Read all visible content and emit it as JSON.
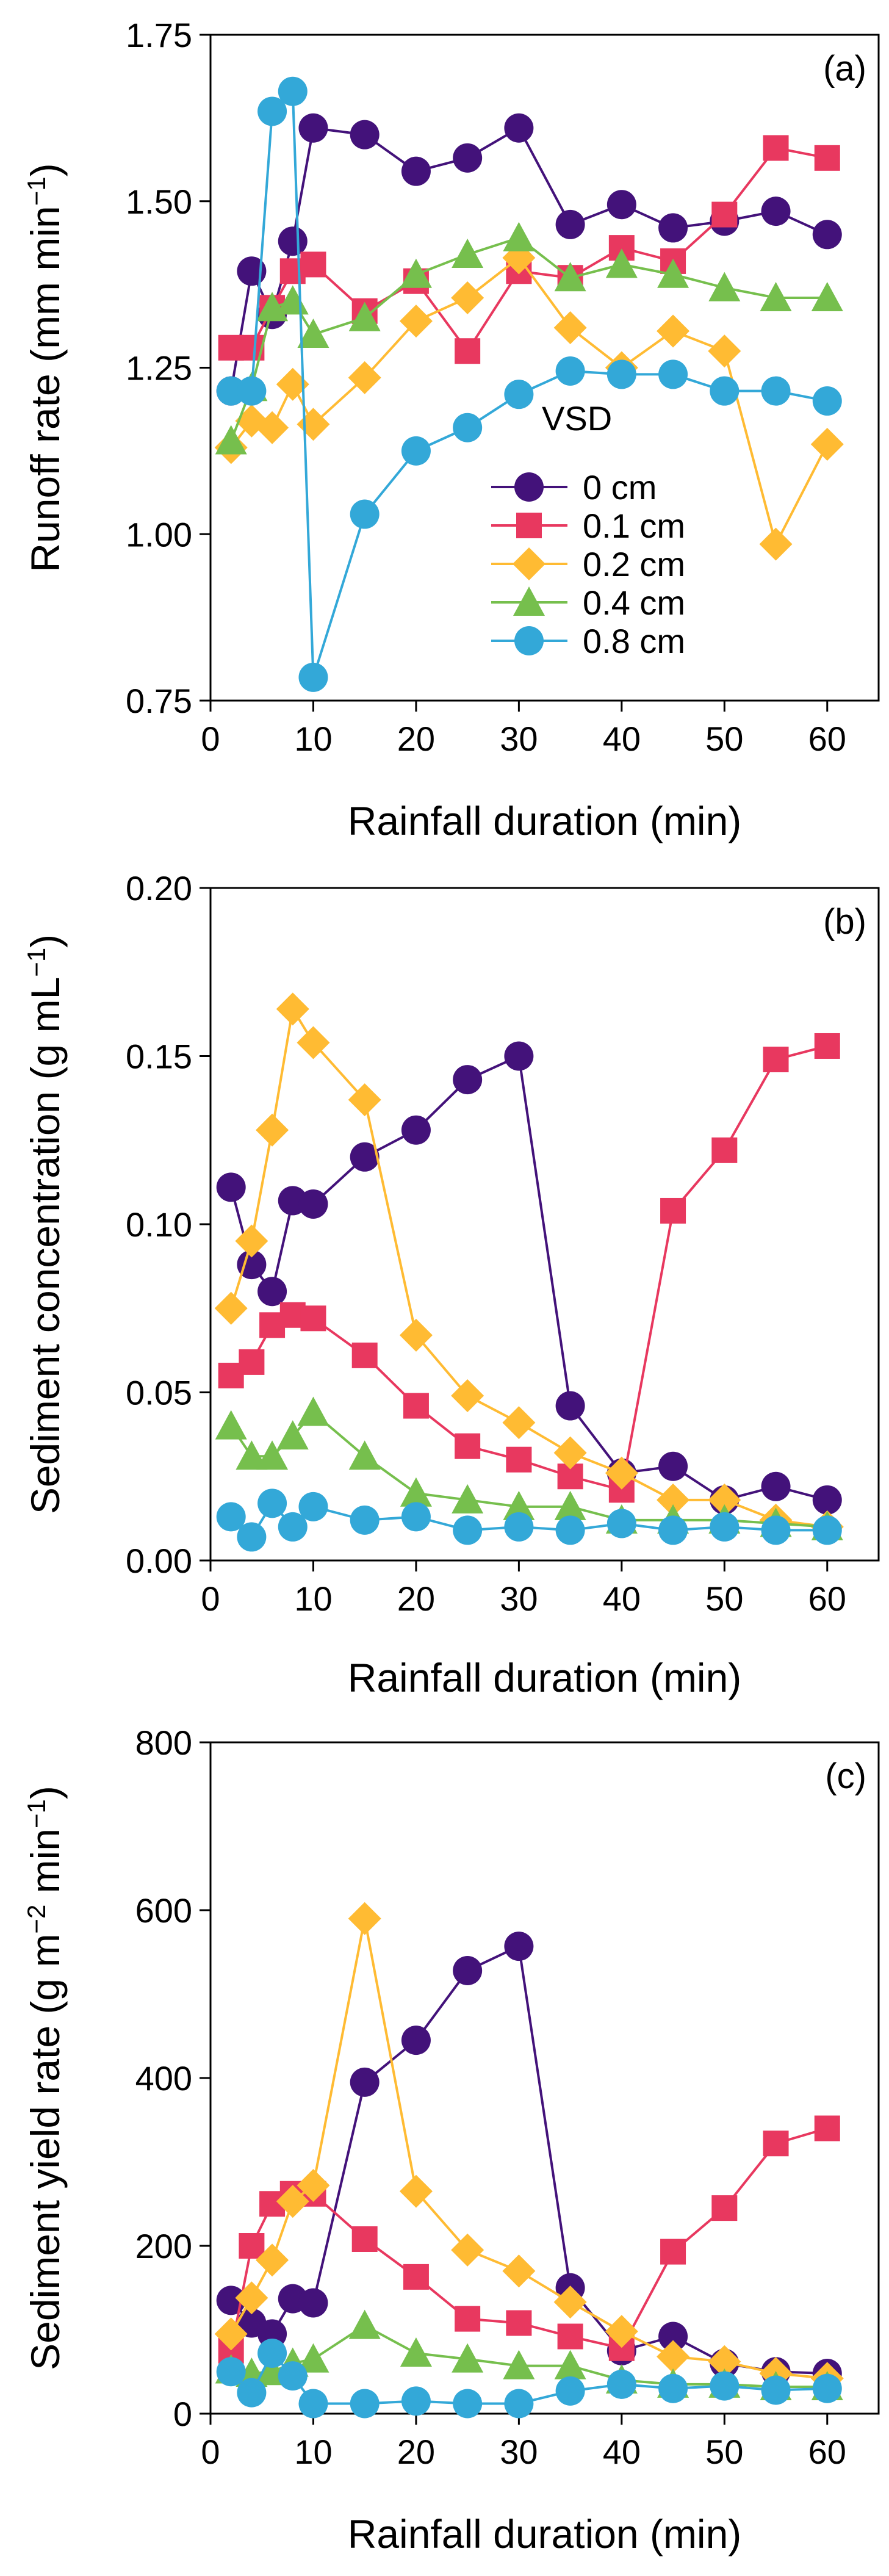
{
  "chart_data": [
    {
      "id": "a",
      "type": "line",
      "panel_label": "(a)",
      "xlabel": "Rainfall duration (min)",
      "ylabel_parts": {
        "main": "Runoff rate (mm min",
        "sup": "−1",
        "tail": ")"
      },
      "xlim": [
        0,
        65
      ],
      "ylim": [
        0.75,
        1.75
      ],
      "x_ticks": [
        0,
        10,
        20,
        30,
        40,
        50,
        60
      ],
      "y_ticks": [
        0.75,
        1.0,
        1.25,
        1.5,
        1.75
      ],
      "y_tick_labels": [
        "0.75",
        "1.00",
        "1.25",
        "1.50",
        "1.75"
      ],
      "legend": {
        "title": "VSD",
        "position": "center-left"
      },
      "series": [
        {
          "name": "0 cm",
          "marker": "circle",
          "x": [
            2,
            4,
            6,
            8,
            10,
            15,
            20,
            25,
            30,
            35,
            40,
            45,
            50,
            55,
            60
          ],
          "y": [
            1.215,
            1.395,
            1.33,
            1.44,
            1.61,
            1.6,
            1.545,
            1.565,
            1.61,
            1.465,
            1.495,
            1.46,
            1.47,
            1.485,
            1.45
          ]
        },
        {
          "name": "0.1 cm",
          "marker": "square",
          "x": [
            2,
            4,
            6,
            8,
            10,
            15,
            20,
            25,
            30,
            35,
            40,
            45,
            50,
            55,
            60
          ],
          "y": [
            1.28,
            1.28,
            1.34,
            1.395,
            1.405,
            1.335,
            1.38,
            1.275,
            1.395,
            1.385,
            1.43,
            1.41,
            1.48,
            1.58,
            1.565
          ]
        },
        {
          "name": "0.2 cm",
          "marker": "diamond",
          "x": [
            2,
            4,
            6,
            8,
            10,
            15,
            20,
            25,
            30,
            35,
            40,
            45,
            50,
            55,
            60
          ],
          "y": [
            1.13,
            1.17,
            1.16,
            1.225,
            1.165,
            1.235,
            1.32,
            1.355,
            1.415,
            1.31,
            1.25,
            1.305,
            1.275,
            0.985,
            1.135
          ]
        },
        {
          "name": "0.4 cm",
          "marker": "triangle",
          "x": [
            2,
            4,
            6,
            8,
            10,
            15,
            20,
            25,
            30,
            35,
            40,
            45,
            50,
            55,
            60
          ],
          "y": [
            1.14,
            1.22,
            1.34,
            1.35,
            1.3,
            1.325,
            1.39,
            1.42,
            1.445,
            1.385,
            1.405,
            1.39,
            1.37,
            1.355,
            1.355
          ]
        },
        {
          "name": "0.8 cm",
          "marker": "circle",
          "x": [
            2,
            4,
            6,
            8,
            10,
            15,
            20,
            25,
            30,
            35,
            40,
            45,
            50,
            55,
            60
          ],
          "y": [
            1.215,
            1.215,
            1.635,
            1.665,
            0.785,
            1.03,
            1.125,
            1.16,
            1.21,
            1.245,
            1.24,
            1.24,
            1.215,
            1.215,
            1.2
          ]
        }
      ]
    },
    {
      "id": "b",
      "type": "line",
      "panel_label": "(b)",
      "xlabel": "Rainfall duration (min)",
      "ylabel_parts": {
        "main": "Sediment concentration (g mL",
        "sup": "−1",
        "tail": ")"
      },
      "xlim": [
        0,
        65
      ],
      "ylim": [
        0.0,
        0.2
      ],
      "x_ticks": [
        0,
        10,
        20,
        30,
        40,
        50,
        60
      ],
      "y_ticks": [
        0.0,
        0.05,
        0.1,
        0.15,
        0.2
      ],
      "y_tick_labels": [
        "0.00",
        "0.05",
        "0.10",
        "0.15",
        "0.20"
      ],
      "series": [
        {
          "name": "0 cm",
          "marker": "circle",
          "x": [
            2,
            4,
            6,
            8,
            10,
            15,
            20,
            25,
            30,
            35,
            40,
            45,
            50,
            55,
            60
          ],
          "y": [
            0.111,
            0.088,
            0.08,
            0.107,
            0.106,
            0.12,
            0.128,
            0.143,
            0.15,
            0.046,
            0.026,
            0.028,
            0.018,
            0.022,
            0.018
          ]
        },
        {
          "name": "0.1 cm",
          "marker": "square",
          "x": [
            2,
            4,
            6,
            8,
            10,
            15,
            20,
            25,
            30,
            35,
            40,
            45,
            50,
            55,
            60
          ],
          "y": [
            0.055,
            0.059,
            0.07,
            0.073,
            0.072,
            0.061,
            0.046,
            0.034,
            0.03,
            0.025,
            0.021,
            0.104,
            0.122,
            0.149,
            0.153
          ]
        },
        {
          "name": "0.2 cm",
          "marker": "diamond",
          "x": [
            2,
            4,
            6,
            8,
            10,
            15,
            20,
            25,
            30,
            35,
            40,
            45,
            50,
            55,
            60
          ],
          "y": [
            0.075,
            0.095,
            0.128,
            0.164,
            0.154,
            0.137,
            0.067,
            0.049,
            0.041,
            0.032,
            0.026,
            0.018,
            0.018,
            0.012,
            0.01
          ]
        },
        {
          "name": "0.4 cm",
          "marker": "triangle",
          "x": [
            2,
            4,
            6,
            8,
            10,
            15,
            20,
            25,
            30,
            35,
            40,
            45,
            50,
            55,
            60
          ],
          "y": [
            0.04,
            0.031,
            0.031,
            0.037,
            0.044,
            0.031,
            0.02,
            0.018,
            0.016,
            0.016,
            0.012,
            0.012,
            0.012,
            0.011,
            0.01
          ]
        },
        {
          "name": "0.8 cm",
          "marker": "circle",
          "x": [
            2,
            4,
            6,
            8,
            10,
            15,
            20,
            25,
            30,
            35,
            40,
            45,
            50,
            55,
            60
          ],
          "y": [
            0.013,
            0.007,
            0.017,
            0.01,
            0.016,
            0.012,
            0.013,
            0.009,
            0.01,
            0.009,
            0.011,
            0.009,
            0.01,
            0.009,
            0.009
          ]
        }
      ]
    },
    {
      "id": "c",
      "type": "line",
      "panel_label": "(c)",
      "xlabel": "Rainfall duration (min)",
      "ylabel_parts": {
        "main": "Sediment yield rate (g m",
        "sup": "−2",
        "mid": " min",
        "sup2": "−1",
        "tail": ")"
      },
      "xlim": [
        0,
        65
      ],
      "ylim": [
        0,
        800
      ],
      "x_ticks": [
        0,
        10,
        20,
        30,
        40,
        50,
        60
      ],
      "y_ticks": [
        0,
        200,
        400,
        600,
        800
      ],
      "y_tick_labels": [
        "0",
        "200",
        "400",
        "600",
        "800"
      ],
      "series": [
        {
          "name": "0 cm",
          "marker": "circle",
          "x": [
            2,
            4,
            6,
            8,
            10,
            15,
            20,
            25,
            30,
            35,
            40,
            45,
            50,
            55,
            60
          ],
          "y": [
            135,
            108,
            95,
            137,
            132,
            395,
            445,
            528,
            557,
            150,
            75,
            92,
            60,
            50,
            48
          ]
        },
        {
          "name": "0.1 cm",
          "marker": "square",
          "x": [
            2,
            4,
            6,
            8,
            10,
            15,
            20,
            25,
            30,
            35,
            40,
            45,
            50,
            55,
            60
          ],
          "y": [
            75,
            200,
            250,
            262,
            262,
            208,
            163,
            113,
            108,
            92,
            78,
            193,
            245,
            322,
            340
          ]
        },
        {
          "name": "0.2 cm",
          "marker": "diamond",
          "x": [
            2,
            4,
            6,
            8,
            10,
            15,
            20,
            25,
            30,
            35,
            40,
            45,
            50,
            55,
            60
          ],
          "y": [
            95,
            138,
            183,
            253,
            272,
            590,
            265,
            195,
            170,
            133,
            98,
            68,
            62,
            48,
            42
          ]
        },
        {
          "name": "0.4 cm",
          "marker": "triangle",
          "x": [
            2,
            4,
            6,
            8,
            10,
            15,
            20,
            25,
            30,
            35,
            40,
            45,
            50,
            55,
            60
          ],
          "y": [
            52,
            48,
            50,
            60,
            65,
            105,
            72,
            65,
            57,
            57,
            40,
            35,
            35,
            32,
            32
          ]
        },
        {
          "name": "0.8 cm",
          "marker": "circle",
          "x": [
            2,
            4,
            6,
            8,
            10,
            15,
            20,
            25,
            30,
            35,
            40,
            45,
            50,
            55,
            60
          ],
          "y": [
            50,
            25,
            72,
            45,
            12,
            12,
            15,
            12,
            12,
            27,
            35,
            30,
            33,
            28,
            30
          ]
        }
      ]
    }
  ],
  "series_colors": {
    "0 cm": "#43127a",
    "0.1 cm": "#e8385f",
    "0.2 cm": "#ffbb33",
    "0.4 cm": "#76bf4d",
    "0.8 cm": "#33a8d8"
  }
}
